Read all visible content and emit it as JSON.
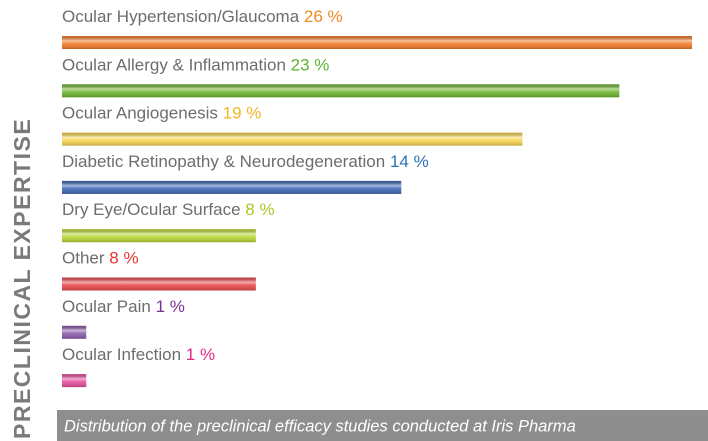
{
  "chart_data": {
    "type": "bar",
    "orientation": "horizontal",
    "title": "PRECLINICAL EXPERTISE",
    "caption": "Distribution of the preclinical efficacy studies conducted at Iris Pharma",
    "categories": [
      "Ocular Hypertension/Glaucoma",
      "Ocular Allergy & Inflammation",
      "Ocular Angiogenesis",
      "Diabetic Retinopathy & Neurodegeneration",
      "Dry Eye/Ocular Surface",
      "Other",
      "Ocular Pain",
      "Ocular Infection"
    ],
    "values": [
      26,
      23,
      19,
      14,
      8,
      8,
      1,
      1
    ],
    "value_labels": [
      "26 %",
      "23 %",
      "19 %",
      "14 %",
      "8 %",
      "8 %",
      "1 %",
      "1 %"
    ],
    "colors": [
      "#f27b2b",
      "#6db52e",
      "#f6d452",
      "#3e66b4",
      "#b9d634",
      "#e9484b",
      "#8a5ba9",
      "#e44d9b"
    ],
    "label_colors": [
      "#f08a22",
      "#5fb232",
      "#f0b424",
      "#2a72b4",
      "#a9c923",
      "#e6352e",
      "#7b3291",
      "#df2a8c"
    ]
  }
}
